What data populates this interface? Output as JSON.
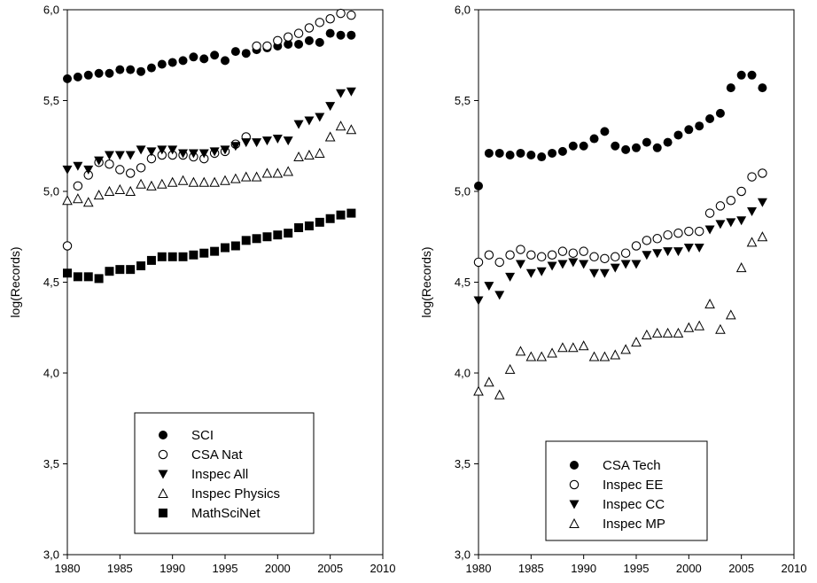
{
  "chart_data": [
    {
      "type": "scatter",
      "ylabel": "log(Records)",
      "xlabel": "",
      "xlim": [
        1980,
        2010
      ],
      "ylim": [
        3.0,
        6.0
      ],
      "x_ticks": [
        "1980",
        "1985",
        "1990",
        "1995",
        "2000",
        "2005",
        "2010"
      ],
      "y_ticks": [
        "3,0",
        "3,5",
        "4,0",
        "4,5",
        "5,0",
        "5,5",
        "6,0"
      ],
      "legend": {
        "placement": "bottom-center"
      },
      "series": [
        {
          "name": "SCI",
          "marker": "circle-filled",
          "x": [
            1980,
            1981,
            1982,
            1983,
            1984,
            1985,
            1986,
            1987,
            1988,
            1989,
            1990,
            1991,
            1992,
            1993,
            1994,
            1995,
            1996,
            1997,
            1998,
            1999,
            2000,
            2001,
            2002,
            2003,
            2004,
            2005,
            2006,
            2007
          ],
          "y": [
            5.62,
            5.63,
            5.64,
            5.65,
            5.65,
            5.67,
            5.67,
            5.66,
            5.68,
            5.7,
            5.71,
            5.72,
            5.74,
            5.73,
            5.75,
            5.72,
            5.77,
            5.76,
            5.78,
            5.79,
            5.8,
            5.81,
            5.81,
            5.83,
            5.82,
            5.87,
            5.86,
            5.86
          ]
        },
        {
          "name": "CSA Nat",
          "marker": "circle-open",
          "x": [
            1980,
            1981,
            1982,
            1983,
            1984,
            1985,
            1986,
            1987,
            1988,
            1989,
            1990,
            1991,
            1992,
            1993,
            1994,
            1995,
            1996,
            1997,
            1998,
            1999,
            2000,
            2001,
            2002,
            2003,
            2004,
            2005,
            2006,
            2007
          ],
          "y": [
            4.7,
            5.03,
            5.09,
            5.16,
            5.15,
            5.12,
            5.1,
            5.13,
            5.18,
            5.2,
            5.2,
            5.2,
            5.19,
            5.18,
            5.21,
            5.22,
            5.26,
            5.3,
            5.8,
            5.8,
            5.83,
            5.85,
            5.87,
            5.9,
            5.93,
            5.95,
            5.98,
            5.97
          ]
        },
        {
          "name": "Inspec All",
          "marker": "triangle-down-filled",
          "x": [
            1980,
            1981,
            1982,
            1983,
            1984,
            1985,
            1986,
            1987,
            1988,
            1989,
            1990,
            1991,
            1992,
            1993,
            1994,
            1995,
            1996,
            1997,
            1998,
            1999,
            2000,
            2001,
            2002,
            2003,
            2004,
            2005,
            2006,
            2007
          ],
          "y": [
            5.12,
            5.14,
            5.12,
            5.17,
            5.2,
            5.2,
            5.2,
            5.23,
            5.22,
            5.23,
            5.23,
            5.21,
            5.21,
            5.21,
            5.22,
            5.23,
            5.25,
            5.27,
            5.27,
            5.28,
            5.29,
            5.28,
            5.37,
            5.39,
            5.41,
            5.47,
            5.54,
            5.55
          ]
        },
        {
          "name": "Inspec Physics",
          "marker": "triangle-up-open",
          "x": [
            1980,
            1981,
            1982,
            1983,
            1984,
            1985,
            1986,
            1987,
            1988,
            1989,
            1990,
            1991,
            1992,
            1993,
            1994,
            1995,
            1996,
            1997,
            1998,
            1999,
            2000,
            2001,
            2002,
            2003,
            2004,
            2005,
            2006,
            2007
          ],
          "y": [
            4.95,
            4.96,
            4.94,
            4.98,
            5.0,
            5.01,
            5.0,
            5.04,
            5.03,
            5.04,
            5.05,
            5.06,
            5.05,
            5.05,
            5.05,
            5.06,
            5.07,
            5.08,
            5.08,
            5.1,
            5.1,
            5.11,
            5.19,
            5.2,
            5.21,
            5.3,
            5.36,
            5.34
          ]
        },
        {
          "name": "MathSciNet",
          "marker": "square-filled",
          "x": [
            1980,
            1981,
            1982,
            1983,
            1984,
            1985,
            1986,
            1987,
            1988,
            1989,
            1990,
            1991,
            1992,
            1993,
            1994,
            1995,
            1996,
            1997,
            1998,
            1999,
            2000,
            2001,
            2002,
            2003,
            2004,
            2005,
            2006,
            2007
          ],
          "y": [
            4.55,
            4.53,
            4.53,
            4.52,
            4.56,
            4.57,
            4.57,
            4.59,
            4.62,
            4.64,
            4.64,
            4.64,
            4.65,
            4.66,
            4.67,
            4.69,
            4.7,
            4.73,
            4.74,
            4.75,
            4.76,
            4.77,
            4.8,
            4.81,
            4.83,
            4.85,
            4.87,
            4.88
          ]
        }
      ]
    },
    {
      "type": "scatter",
      "ylabel": "log(Records)",
      "xlabel": "",
      "xlim": [
        1980,
        2010
      ],
      "ylim": [
        3.0,
        6.0
      ],
      "x_ticks": [
        "1980",
        "1985",
        "1990",
        "1995",
        "2000",
        "2005",
        "2010"
      ],
      "y_ticks": [
        "3,0",
        "3,5",
        "4,0",
        "4,5",
        "5,0",
        "5,5",
        "6,0"
      ],
      "legend": {
        "placement": "bottom-center"
      },
      "series": [
        {
          "name": "CSA Tech",
          "marker": "circle-filled",
          "x": [
            1980,
            1981,
            1982,
            1983,
            1984,
            1985,
            1986,
            1987,
            1988,
            1989,
            1990,
            1991,
            1992,
            1993,
            1994,
            1995,
            1996,
            1997,
            1998,
            1999,
            2000,
            2001,
            2002,
            2003,
            2004,
            2005,
            2006,
            2007
          ],
          "y": [
            5.03,
            5.21,
            5.21,
            5.2,
            5.21,
            5.2,
            5.19,
            5.21,
            5.22,
            5.25,
            5.25,
            5.29,
            5.33,
            5.25,
            5.23,
            5.24,
            5.27,
            5.24,
            5.27,
            5.31,
            5.34,
            5.36,
            5.4,
            5.43,
            5.57,
            5.64,
            5.64,
            5.57
          ]
        },
        {
          "name": "Inspec EE",
          "marker": "circle-open",
          "x": [
            1980,
            1981,
            1982,
            1983,
            1984,
            1985,
            1986,
            1987,
            1988,
            1989,
            1990,
            1991,
            1992,
            1993,
            1994,
            1995,
            1996,
            1997,
            1998,
            1999,
            2000,
            2001,
            2002,
            2003,
            2004,
            2005,
            2006,
            2007
          ],
          "y": [
            4.61,
            4.65,
            4.61,
            4.65,
            4.68,
            4.65,
            4.64,
            4.65,
            4.67,
            4.66,
            4.67,
            4.64,
            4.63,
            4.64,
            4.66,
            4.7,
            4.73,
            4.74,
            4.76,
            4.77,
            4.78,
            4.78,
            4.88,
            4.92,
            4.95,
            5.0,
            5.08,
            5.1
          ]
        },
        {
          "name": "Inspec CC",
          "marker": "triangle-down-filled",
          "x": [
            1980,
            1981,
            1982,
            1983,
            1984,
            1985,
            1986,
            1987,
            1988,
            1989,
            1990,
            1991,
            1992,
            1993,
            1994,
            1995,
            1996,
            1997,
            1998,
            1999,
            2000,
            2001,
            2002,
            2003,
            2004,
            2005,
            2006,
            2007
          ],
          "y": [
            4.4,
            4.48,
            4.43,
            4.53,
            4.6,
            4.55,
            4.56,
            4.59,
            4.6,
            4.61,
            4.6,
            4.55,
            4.55,
            4.58,
            4.6,
            4.6,
            4.65,
            4.66,
            4.67,
            4.67,
            4.69,
            4.69,
            4.79,
            4.82,
            4.83,
            4.84,
            4.89,
            4.94
          ]
        },
        {
          "name": "Inspec MP",
          "marker": "triangle-up-open",
          "x": [
            1980,
            1981,
            1982,
            1983,
            1984,
            1985,
            1986,
            1987,
            1988,
            1989,
            1990,
            1991,
            1992,
            1993,
            1994,
            1995,
            1996,
            1997,
            1998,
            1999,
            2000,
            2001,
            2002,
            2003,
            2004,
            2005,
            2006,
            2007
          ],
          "y": [
            3.9,
            3.95,
            3.88,
            4.02,
            4.12,
            4.09,
            4.09,
            4.11,
            4.14,
            4.14,
            4.15,
            4.09,
            4.09,
            4.1,
            4.13,
            4.17,
            4.21,
            4.22,
            4.22,
            4.22,
            4.25,
            4.26,
            4.38,
            4.24,
            4.32,
            4.58,
            4.72,
            4.75
          ]
        }
      ]
    }
  ]
}
